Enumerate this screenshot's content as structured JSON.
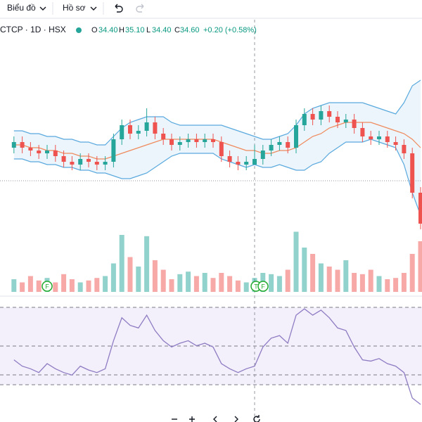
{
  "toolbar": {
    "chart_menu": "Biểu đồ",
    "profile_menu": "Hồ sơ"
  },
  "legend": {
    "symbol": "CTCP · 1D · HSX",
    "o_label": "O",
    "o_value": "34.40",
    "h_label": "H",
    "h_value": "35.10",
    "l_label": "L",
    "l_value": "34.40",
    "c_label": "C",
    "c_value": "34.60",
    "change": "+0.20 (+0.58%)"
  },
  "markers": [
    "F",
    "T",
    "F"
  ],
  "chart_data": {
    "type": "candlestick",
    "up_color": "#26a69a",
    "down_color": "#ef5350",
    "band_color": "#5aa9de",
    "middle_color": "#f08a5d",
    "rsi_color": "#8e7cc3",
    "ylim": [
      31,
      38
    ],
    "volume_lim": [
      0,
      100
    ],
    "rsi_lim": [
      10,
      90
    ],
    "open": [
      35.0,
      35.2,
      35.0,
      34.9,
      34.8,
      34.9,
      34.7,
      34.5,
      34.4,
      34.6,
      34.5,
      34.4,
      34.5,
      35.3,
      35.8,
      35.5,
      35.6,
      35.9,
      35.5,
      35.3,
      35.1,
      35.2,
      35.3,
      35.2,
      35.3,
      35.2,
      34.7,
      34.5,
      34.4,
      34.4,
      34.6,
      34.9,
      35.1,
      35.2,
      35.0,
      35.8,
      36.2,
      36.0,
      36.3,
      36.1,
      35.9,
      36.0,
      35.7,
      35.4,
      35.3,
      35.4,
      35.2,
      35.1,
      34.8,
      33.4
    ],
    "high": [
      35.4,
      35.4,
      35.2,
      35.1,
      35.1,
      35.1,
      34.9,
      34.7,
      34.8,
      34.8,
      34.7,
      34.7,
      35.5,
      36.0,
      36.0,
      35.8,
      36.4,
      36.1,
      35.7,
      35.5,
      35.4,
      35.5,
      35.5,
      35.5,
      35.5,
      35.4,
      34.9,
      34.7,
      34.7,
      35.1,
      35.1,
      35.3,
      35.4,
      35.4,
      36.0,
      36.4,
      36.4,
      36.5,
      36.5,
      36.3,
      36.2,
      36.2,
      35.9,
      35.6,
      35.6,
      35.6,
      35.4,
      35.3,
      35.0,
      33.6
    ],
    "low": [
      34.8,
      34.8,
      34.7,
      34.6,
      34.6,
      34.5,
      34.3,
      34.2,
      34.2,
      34.3,
      34.2,
      34.2,
      34.3,
      35.1,
      35.3,
      35.3,
      35.4,
      35.3,
      35.1,
      34.9,
      34.9,
      35.0,
      35.0,
      35.0,
      35.0,
      34.5,
      34.3,
      34.2,
      34.2,
      34.4,
      34.4,
      34.7,
      34.9,
      34.8,
      34.8,
      35.6,
      35.8,
      35.8,
      35.9,
      35.7,
      35.7,
      35.5,
      35.2,
      35.1,
      35.1,
      35.0,
      34.9,
      34.6,
      33.2,
      32.1
    ],
    "close": [
      35.2,
      35.0,
      34.9,
      34.8,
      34.9,
      34.7,
      34.5,
      34.4,
      34.6,
      34.5,
      34.4,
      34.5,
      35.3,
      35.8,
      35.5,
      35.6,
      35.9,
      35.5,
      35.3,
      35.1,
      35.2,
      35.3,
      35.2,
      35.3,
      35.2,
      34.7,
      34.5,
      34.4,
      34.5,
      34.6,
      34.9,
      35.1,
      35.2,
      35.0,
      35.8,
      36.2,
      36.0,
      36.3,
      36.1,
      35.9,
      36.0,
      35.7,
      35.4,
      35.3,
      35.4,
      35.2,
      35.1,
      34.8,
      33.4,
      32.3
    ],
    "upper": [
      35.6,
      35.6,
      35.5,
      35.5,
      35.4,
      35.4,
      35.3,
      35.3,
      35.2,
      35.2,
      35.1,
      35.1,
      35.4,
      35.7,
      35.9,
      36.0,
      36.1,
      36.1,
      36.1,
      35.9,
      35.8,
      35.8,
      35.8,
      35.8,
      35.8,
      35.8,
      35.7,
      35.6,
      35.5,
      35.4,
      35.3,
      35.3,
      35.4,
      35.5,
      35.8,
      36.2,
      36.4,
      36.5,
      36.6,
      36.6,
      36.6,
      36.6,
      36.6,
      36.5,
      36.4,
      36.3,
      36.2,
      36.6,
      37.2,
      37.4
    ],
    "middle": [
      35.1,
      35.1,
      35.0,
      35.0,
      34.9,
      34.9,
      34.8,
      34.8,
      34.7,
      34.7,
      34.6,
      34.6,
      34.7,
      34.8,
      34.9,
      35.0,
      35.1,
      35.2,
      35.3,
      35.3,
      35.3,
      35.3,
      35.3,
      35.3,
      35.3,
      35.2,
      35.1,
      35.0,
      34.9,
      34.9,
      34.8,
      34.8,
      34.9,
      34.9,
      35.0,
      35.2,
      35.4,
      35.5,
      35.7,
      35.8,
      35.9,
      35.9,
      35.9,
      35.9,
      35.8,
      35.7,
      35.6,
      35.5,
      35.3,
      35.0
    ],
    "lower": [
      34.6,
      34.6,
      34.5,
      34.5,
      34.4,
      34.4,
      34.3,
      34.3,
      34.2,
      34.2,
      34.1,
      34.1,
      34.0,
      33.9,
      33.9,
      34.0,
      34.1,
      34.3,
      34.5,
      34.7,
      34.8,
      34.8,
      34.8,
      34.8,
      34.8,
      34.6,
      34.5,
      34.4,
      34.3,
      34.4,
      34.3,
      34.3,
      34.4,
      34.3,
      34.2,
      34.2,
      34.4,
      34.5,
      34.8,
      35.0,
      35.2,
      35.2,
      35.2,
      35.3,
      35.2,
      35.1,
      35.0,
      34.4,
      33.4,
      32.6
    ],
    "volume": [
      20,
      15,
      25,
      18,
      22,
      15,
      28,
      20,
      15,
      18,
      22,
      25,
      45,
      90,
      55,
      40,
      88,
      50,
      35,
      20,
      28,
      32,
      25,
      30,
      22,
      30,
      25,
      18,
      15,
      22,
      30,
      28,
      25,
      35,
      95,
      70,
      60,
      45,
      40,
      35,
      50,
      30,
      28,
      35,
      25,
      20,
      22,
      30,
      60,
      80
    ],
    "rsi": [
      45,
      40,
      38,
      35,
      42,
      38,
      35,
      33,
      40,
      37,
      35,
      38,
      60,
      78,
      72,
      70,
      80,
      68,
      60,
      55,
      58,
      60,
      56,
      58,
      55,
      42,
      38,
      35,
      38,
      40,
      55,
      62,
      64,
      58,
      80,
      85,
      80,
      84,
      78,
      70,
      68,
      55,
      45,
      44,
      46,
      42,
      40,
      35,
      15,
      10
    ]
  }
}
